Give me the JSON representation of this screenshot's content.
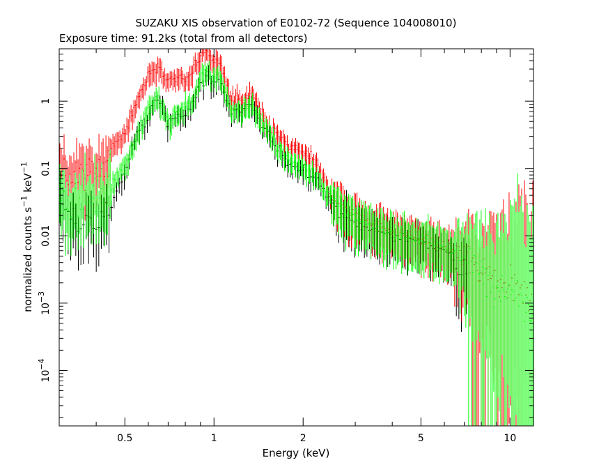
{
  "chart_data": {
    "type": "scatter",
    "title": "SUZAKU XIS observation of E0102-72 (Sequence 104008010)",
    "subtitle": "Exposure time: 91.2ks (total from all detectors)",
    "xlabel": "Energy (keV)",
    "ylabel": {
      "main": "normalized counts s",
      "exp1": "−1",
      "mid": " keV",
      "exp2": "−1"
    },
    "x_scale": "log",
    "y_scale": "log",
    "xlim": [
      0.3,
      12
    ],
    "ylim": [
      1.5e-05,
      6
    ],
    "grid": false,
    "x_ticks": [
      {
        "value": 0.5,
        "label": "0.5"
      },
      {
        "value": 1,
        "label": "1"
      },
      {
        "value": 2,
        "label": "2"
      },
      {
        "value": 5,
        "label": "5"
      },
      {
        "value": 10,
        "label": "10"
      }
    ],
    "y_ticks": [
      {
        "value": 1,
        "label": "1"
      },
      {
        "value": 0.1,
        "label": "0.1"
      },
      {
        "value": 0.01,
        "label": "0.01"
      },
      {
        "value": 0.001,
        "base": "10",
        "exp": "−3"
      },
      {
        "value": 0.0001,
        "base": "10",
        "exp": "−4"
      }
    ],
    "series": [
      {
        "color": "#000000",
        "energy_range": [
          0.3,
          7.2
        ],
        "profile": [
          [
            0.3,
            0.025
          ],
          [
            0.35,
            0.016
          ],
          [
            0.4,
            0.014
          ],
          [
            0.45,
            0.03
          ],
          [
            0.5,
            0.09
          ],
          [
            0.55,
            0.3
          ],
          [
            0.6,
            0.6
          ],
          [
            0.65,
            1.1
          ],
          [
            0.7,
            0.45
          ],
          [
            0.75,
            0.65
          ],
          [
            0.8,
            0.7
          ],
          [
            0.85,
            0.9
          ],
          [
            0.9,
            1.8
          ],
          [
            0.95,
            2.5
          ],
          [
            1.0,
            1.8
          ],
          [
            1.03,
            2.7
          ],
          [
            1.08,
            1.4
          ],
          [
            1.15,
            0.65
          ],
          [
            1.25,
            0.75
          ],
          [
            1.35,
            0.8
          ],
          [
            1.45,
            0.45
          ],
          [
            1.6,
            0.22
          ],
          [
            1.8,
            0.12
          ],
          [
            2.0,
            0.1
          ],
          [
            2.2,
            0.08
          ],
          [
            2.5,
            0.03
          ],
          [
            3.0,
            0.015
          ],
          [
            3.5,
            0.012
          ],
          [
            4.0,
            0.01
          ],
          [
            5.0,
            0.008
          ],
          [
            6.0,
            0.006
          ],
          [
            7.2,
            0.004
          ]
        ]
      },
      {
        "color": "#ff0000",
        "energy_range": [
          0.3,
          12
        ],
        "profile": [
          [
            0.3,
            0.08
          ],
          [
            0.35,
            0.08
          ],
          [
            0.4,
            0.09
          ],
          [
            0.45,
            0.2
          ],
          [
            0.5,
            0.35
          ],
          [
            0.55,
            1.0
          ],
          [
            0.6,
            2.5
          ],
          [
            0.65,
            3.3
          ],
          [
            0.7,
            2.0
          ],
          [
            0.75,
            2.2
          ],
          [
            0.8,
            2.2
          ],
          [
            0.85,
            2.8
          ],
          [
            0.9,
            5.0
          ],
          [
            0.95,
            5.5
          ],
          [
            1.0,
            3.8
          ],
          [
            1.03,
            4.2
          ],
          [
            1.08,
            2.5
          ],
          [
            1.15,
            1.1
          ],
          [
            1.25,
            1.0
          ],
          [
            1.35,
            1.3
          ],
          [
            1.45,
            0.6
          ],
          [
            1.6,
            0.35
          ],
          [
            1.8,
            0.2
          ],
          [
            2.0,
            0.18
          ],
          [
            2.2,
            0.12
          ],
          [
            2.5,
            0.04
          ],
          [
            3.0,
            0.02
          ],
          [
            3.5,
            0.015
          ],
          [
            4.0,
            0.012
          ],
          [
            5.0,
            0.009
          ],
          [
            6.0,
            0.007
          ],
          [
            7.0,
            0.005
          ],
          [
            8.0,
            0.003
          ],
          [
            10.0,
            0.002
          ],
          [
            12.0,
            0.001
          ]
        ]
      },
      {
        "color": "#00ff00",
        "energy_range": [
          0.3,
          12
        ],
        "profile": [
          [
            0.3,
            0.04
          ],
          [
            0.35,
            0.03
          ],
          [
            0.4,
            0.04
          ],
          [
            0.45,
            0.06
          ],
          [
            0.5,
            0.12
          ],
          [
            0.55,
            0.3
          ],
          [
            0.6,
            0.8
          ],
          [
            0.65,
            1.2
          ],
          [
            0.7,
            0.5
          ],
          [
            0.75,
            0.7
          ],
          [
            0.8,
            0.85
          ],
          [
            0.85,
            1.1
          ],
          [
            0.9,
            2.2
          ],
          [
            0.95,
            3.0
          ],
          [
            1.0,
            2.0
          ],
          [
            1.03,
            3.0
          ],
          [
            1.08,
            1.6
          ],
          [
            1.15,
            0.7
          ],
          [
            1.25,
            0.8
          ],
          [
            1.35,
            0.9
          ],
          [
            1.45,
            0.5
          ],
          [
            1.6,
            0.25
          ],
          [
            1.8,
            0.13
          ],
          [
            2.0,
            0.11
          ],
          [
            2.2,
            0.09
          ],
          [
            2.5,
            0.035
          ],
          [
            3.0,
            0.017
          ],
          [
            3.5,
            0.013
          ],
          [
            4.0,
            0.011
          ],
          [
            5.0,
            0.009
          ],
          [
            6.0,
            0.007
          ],
          [
            7.0,
            0.005
          ],
          [
            8.0,
            0.003
          ],
          [
            10.0,
            0.0015
          ],
          [
            12.0,
            0.0008
          ]
        ]
      }
    ]
  }
}
